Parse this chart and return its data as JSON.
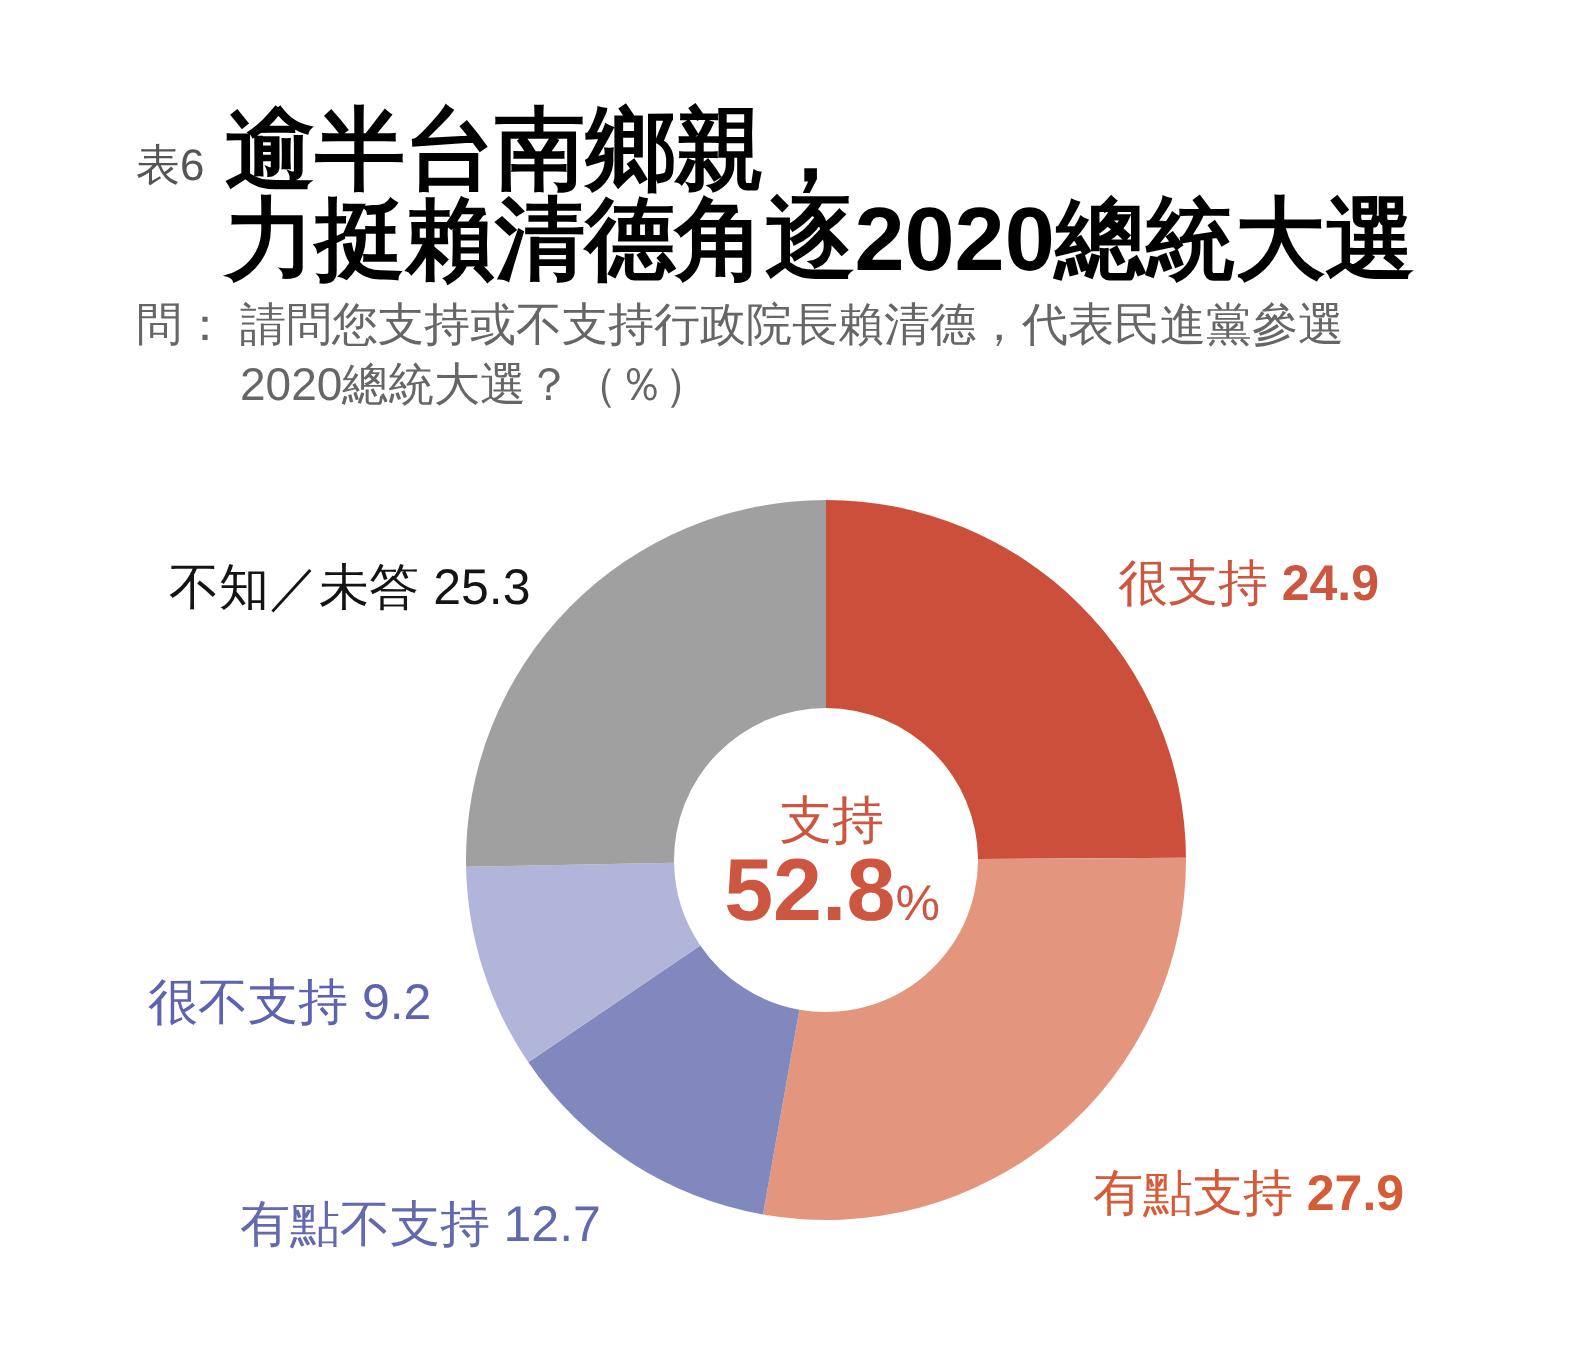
{
  "chart_data": {
    "type": "donut",
    "title": "表6 逾半台南鄉親，力挺賴清德角逐2020總統大選",
    "subtitle": "問：請問您支持或不支持行政院長賴清德，代表民進黨參選2020總統大選？（％）",
    "categories": [
      "很支持",
      "有點支持",
      "有點不支持",
      "很不支持",
      "不知／未答"
    ],
    "values": [
      24.9,
      27.9,
      12.7,
      9.2,
      25.3
    ],
    "colors": [
      "#cb4f3a",
      "#e4957e",
      "#8188bd",
      "#b2b5da",
      "#a0a0a0"
    ],
    "data_labels": true,
    "annotations": [
      "支持",
      "52.8%"
    ]
  }
}
